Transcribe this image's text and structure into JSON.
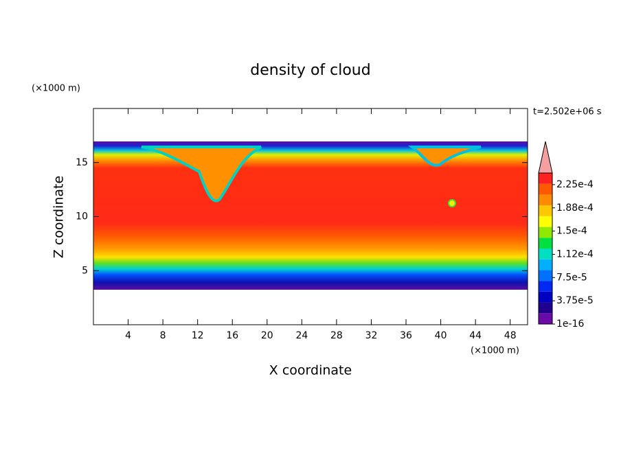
{
  "chart_data": {
    "type": "contour",
    "title": "density of cloud",
    "xlabel": "X coordinate",
    "ylabel": "Z coordinate",
    "x_unit": "(×1000 m)",
    "y_unit": "(×1000 m)",
    "time_label": "t=2.502e+06 s",
    "xlim": [
      0,
      50
    ],
    "xticks": [
      4,
      8,
      12,
      16,
      20,
      24,
      28,
      32,
      36,
      40,
      44,
      48
    ],
    "ylim": [
      0,
      20
    ],
    "yticks": [
      5,
      10,
      15
    ],
    "colorbar": {
      "lim": [
        1e-16,
        0.00024375
      ],
      "ticks": [
        1e-16,
        {
          "value": 3.75e-05,
          "label": "3.75e-5"
        },
        {
          "value": 7.5e-05,
          "label": "7.5e-5"
        },
        {
          "value": 0.0001125,
          "label": "1.12e-4"
        },
        {
          "value": 0.00015,
          "label": "1.5e-4"
        },
        {
          "value": 0.0001875,
          "label": "1.88e-4"
        },
        {
          "value": 0.000225,
          "label": "2.25e-4"
        }
      ],
      "colors": [
        "#6a0aa8",
        "#20008c",
        "#0000c0",
        "#0028f0",
        "#0070ff",
        "#00b0ff",
        "#00e0c0",
        "#00e040",
        "#90e800",
        "#ffff00",
        "#ffc800",
        "#ff8c00",
        "#ff5a00",
        "#ff2020"
      ],
      "extend_color": "#f4a0a0"
    }
  }
}
